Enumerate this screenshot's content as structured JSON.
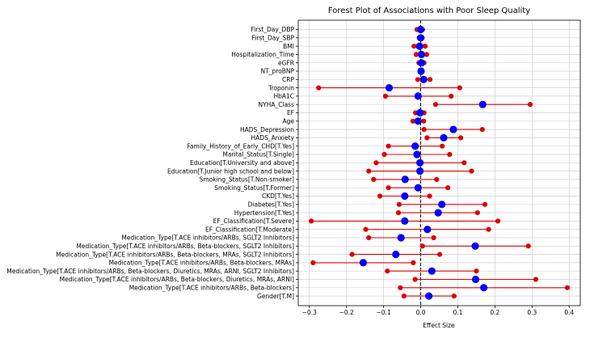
{
  "chart_data": {
    "type": "scatter",
    "title": "Forest Plot of Associations with Poor Sleep Quality",
    "xlabel": "Effect Size",
    "ylabel": "",
    "xlim": [
      -0.33,
      0.43
    ],
    "xticks": [
      -0.3,
      -0.2,
      -0.1,
      0.0,
      0.1,
      0.2,
      0.3,
      0.4
    ],
    "xtick_labels": [
      "−0.3",
      "−0.2",
      "−0.1",
      "0.0",
      "0.1",
      "0.2",
      "0.3",
      "0.4"
    ],
    "grid": true,
    "reference_line": 0,
    "colors": {
      "estimate": "#0000ff",
      "interval": "#dd0000",
      "reference": "#000000",
      "grid": "#d0d0d0"
    },
    "rows": [
      {
        "label": "First_Day_DBP",
        "estimate": 0.0,
        "lower": -0.01,
        "upper": 0.005
      },
      {
        "label": "First_Day_SBP",
        "estimate": 0.0,
        "lower": -0.004,
        "upper": 0.004
      },
      {
        "label": "BMI",
        "estimate": -0.003,
        "lower": -0.018,
        "upper": 0.012
      },
      {
        "label": "Hospitalization_Time",
        "estimate": 0.002,
        "lower": -0.012,
        "upper": 0.016
      },
      {
        "label": "eGFR",
        "estimate": 0.002,
        "lower": -0.005,
        "upper": 0.009
      },
      {
        "label": "NT_proBNP",
        "estimate": 0.001,
        "lower": 0.0,
        "upper": 0.002
      },
      {
        "label": "CRP",
        "estimate": 0.008,
        "lower": -0.008,
        "upper": 0.025
      },
      {
        "label": "Troponin",
        "estimate": -0.085,
        "lower": -0.275,
        "upper": 0.105
      },
      {
        "label": "HbA1C",
        "estimate": -0.007,
        "lower": -0.095,
        "upper": 0.082
      },
      {
        "label": "NYHA_Class",
        "estimate": 0.167,
        "lower": 0.04,
        "upper": 0.295
      },
      {
        "label": "EF",
        "estimate": -0.002,
        "lower": -0.014,
        "upper": 0.009
      },
      {
        "label": "Age",
        "estimate": -0.007,
        "lower": -0.021,
        "upper": 0.008
      },
      {
        "label": "HADS_Depression",
        "estimate": 0.088,
        "lower": 0.009,
        "upper": 0.166
      },
      {
        "label": "HADS_Anxiety",
        "estimate": 0.062,
        "lower": 0.017,
        "upper": 0.108
      },
      {
        "label": "Family_History_of_Early_CHD[T.Yes]",
        "estimate": -0.015,
        "lower": -0.087,
        "upper": 0.058
      },
      {
        "label": "Marital_Status[T.Single]",
        "estimate": -0.01,
        "lower": -0.098,
        "upper": 0.078
      },
      {
        "label": "Education[T.University and above]",
        "estimate": -0.002,
        "lower": -0.12,
        "upper": 0.117
      },
      {
        "label": "Education[T.Junior high school and below]",
        "estimate": -0.002,
        "lower": -0.14,
        "upper": 0.137
      },
      {
        "label": "Smoking_Status[T.Non-smoker]",
        "estimate": -0.042,
        "lower": -0.127,
        "upper": 0.043
      },
      {
        "label": "Smoking_Status[T.Former]",
        "estimate": -0.007,
        "lower": -0.087,
        "upper": 0.073
      },
      {
        "label": "CKD[T.Yes]",
        "estimate": -0.043,
        "lower": -0.11,
        "upper": 0.024
      },
      {
        "label": "Diabetes[T.Yes]",
        "estimate": 0.057,
        "lower": -0.058,
        "upper": 0.173
      },
      {
        "label": "Hypertension[T.Yes]",
        "estimate": 0.047,
        "lower": -0.06,
        "upper": 0.153
      },
      {
        "label": "EF_Classification[T.Severe]",
        "estimate": -0.043,
        "lower": -0.295,
        "upper": 0.208
      },
      {
        "label": "EF_Classification[T.Moderate]",
        "estimate": 0.018,
        "lower": -0.148,
        "upper": 0.183
      },
      {
        "label": "Medication_Type[T.ACE inhibitors/ARBs, SGLT2 Inhibitors]",
        "estimate": -0.053,
        "lower": -0.14,
        "upper": 0.035
      },
      {
        "label": "Medication_Type[T.ACE inhibitors/ARBs, Beta-blockers, SGLT2 Inhibitors]",
        "estimate": 0.147,
        "lower": 0.005,
        "upper": 0.29
      },
      {
        "label": "Medication_Type[T.ACE inhibitors/ARBs, Beta-blockers, MRAs, SGLT2 Inhibitors]",
        "estimate": -0.067,
        "lower": -0.185,
        "upper": 0.051
      },
      {
        "label": "Medication_Type[T.ACE inhibitors/ARBs, Beta-blockers, MRAs]",
        "estimate": -0.155,
        "lower": -0.29,
        "upper": -0.02
      },
      {
        "label": "Medication_Type[T.ACE inhibitors/ARBs, Beta-blockers, Diuretics, MRAs, ARNI, SGLT2 Inhibitors]",
        "estimate": 0.03,
        "lower": -0.09,
        "upper": 0.15
      },
      {
        "label": "Medication_Type[T.ACE inhibitors/ARBs, Beta-blockers, Diuretics, MRAs, ARNI]",
        "estimate": 0.148,
        "lower": -0.015,
        "upper": 0.31
      },
      {
        "label": "Medication_Type[T.ACE inhibitors/ARBs, Beta-blockers]",
        "estimate": 0.17,
        "lower": -0.055,
        "upper": 0.395
      },
      {
        "label": "Gender[T.M]",
        "estimate": 0.022,
        "lower": -0.045,
        "upper": 0.09
      }
    ]
  }
}
